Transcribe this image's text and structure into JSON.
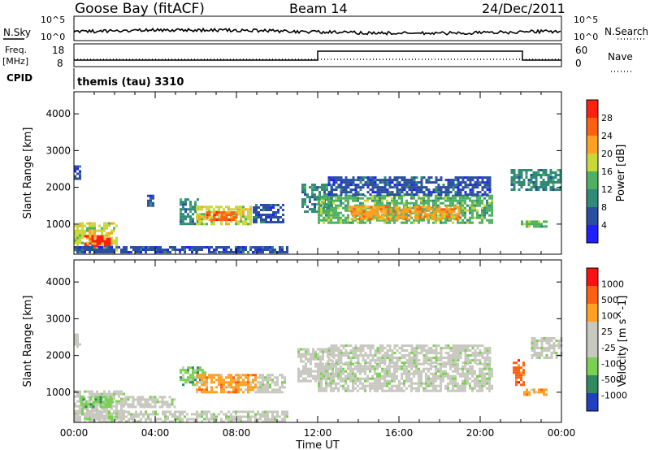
{
  "header": {
    "station": "Goose Bay (fitACF)",
    "beam": "Beam 14",
    "date": "24/Dec/2011"
  },
  "top_panels": {
    "nsky_label": "N.Sky",
    "nsky_ticks": [
      "10^5",
      "10^0"
    ],
    "nsearch_label": "N.Search",
    "nsearch_ticks": [
      "10^5",
      "10^0"
    ],
    "freq_label": "Freq.",
    "freq_unit": "[MHz]",
    "freq_ticks": [
      "18",
      "8"
    ],
    "nave_label": "Nave",
    "nave_ticks": [
      "60",
      "0"
    ],
    "cpid_label": "CPID",
    "cpid_text": "themis (tau) 3310"
  },
  "chart_data": [
    {
      "type": "heatmap",
      "name": "power",
      "ylabel": "Slant Range [km]",
      "y_ticks": [
        "4000",
        "3000",
        "2000",
        "1000"
      ],
      "ylim": [
        180,
        4600
      ],
      "xlim": [
        0,
        24
      ],
      "colorbar_label": "Power [dB]",
      "colorbar_ticks": [
        "28",
        "24",
        "20",
        "16",
        "12",
        "8",
        "4"
      ],
      "colors": [
        "#2020ff",
        "#2a4fa0",
        "#2f8a78",
        "#4fb060",
        "#c8d838",
        "#ffa020",
        "#ff6010",
        "#ff2010"
      ],
      "regions": [
        {
          "x0": 0.0,
          "x1": 2.2,
          "y0": 250,
          "y1": 1050,
          "level": 4
        },
        {
          "x0": 0.5,
          "x1": 1.8,
          "y0": 350,
          "y1": 700,
          "level": 7
        },
        {
          "x0": 0.0,
          "x1": 0.3,
          "y0": 2200,
          "y1": 2600,
          "level": 1
        },
        {
          "x0": 3.6,
          "x1": 4.0,
          "y0": 1450,
          "y1": 1800,
          "level": 1
        },
        {
          "x0": 5.2,
          "x1": 6.2,
          "y0": 1000,
          "y1": 1700,
          "level": 2
        },
        {
          "x0": 6.0,
          "x1": 8.8,
          "y0": 950,
          "y1": 1500,
          "level": 4
        },
        {
          "x0": 6.5,
          "x1": 8.0,
          "y0": 1100,
          "y1": 1350,
          "level": 6
        },
        {
          "x0": 8.8,
          "x1": 10.4,
          "y0": 1000,
          "y1": 1550,
          "level": 1
        },
        {
          "x0": 11.2,
          "x1": 12.8,
          "y0": 1300,
          "y1": 2100,
          "level": 2
        },
        {
          "x0": 12.0,
          "x1": 20.6,
          "y0": 1000,
          "y1": 1800,
          "level": 3
        },
        {
          "x0": 13.5,
          "x1": 19.0,
          "y0": 1100,
          "y1": 1500,
          "level": 5
        },
        {
          "x0": 12.5,
          "x1": 20.5,
          "y0": 1800,
          "y1": 2300,
          "level": 1
        },
        {
          "x0": 21.5,
          "x1": 24.0,
          "y0": 1900,
          "y1": 2500,
          "level": 2
        },
        {
          "x0": 22.0,
          "x1": 23.3,
          "y0": 900,
          "y1": 1100,
          "level": 3
        },
        {
          "x0": 0.0,
          "x1": 10.5,
          "y0": 180,
          "y1": 400,
          "level": 1
        }
      ]
    },
    {
      "type": "heatmap",
      "name": "velocity",
      "ylabel": "Slant Range [km]",
      "y_ticks": [
        "4000",
        "3000",
        "2000",
        "1000"
      ],
      "ylim": [
        180,
        4600
      ],
      "xlim": [
        0,
        24
      ],
      "colorbar_label": "Velocity [m s^-1]",
      "colorbar_ticks": [
        "1000",
        "500",
        "100",
        "25",
        "-25",
        "-100",
        "-500",
        "-1000"
      ],
      "colors": [
        "#2040c0",
        "#2f8a60",
        "#7ad050",
        "#c8c8c0",
        "#c8c8c0",
        "#ffa020",
        "#ff6010",
        "#ff1010"
      ],
      "regions": [
        {
          "x0": 0.0,
          "x1": 2.5,
          "y0": 250,
          "y1": 1050,
          "level": 3
        },
        {
          "x0": 0.3,
          "x1": 2.0,
          "y0": 600,
          "y1": 900,
          "level": 2
        },
        {
          "x0": 2.5,
          "x1": 5.0,
          "y0": 600,
          "y1": 900,
          "level": 3
        },
        {
          "x0": 0.0,
          "x1": 0.3,
          "y0": 2200,
          "y1": 2600,
          "level": 3
        },
        {
          "x0": 5.2,
          "x1": 6.5,
          "y0": 1200,
          "y1": 1700,
          "level": 2
        },
        {
          "x0": 6.0,
          "x1": 9.0,
          "y0": 1000,
          "y1": 1500,
          "level": 5
        },
        {
          "x0": 9.0,
          "x1": 10.4,
          "y0": 1000,
          "y1": 1500,
          "level": 3
        },
        {
          "x0": 11.0,
          "x1": 12.8,
          "y0": 1300,
          "y1": 2200,
          "level": 3
        },
        {
          "x0": 12.0,
          "x1": 20.6,
          "y0": 1000,
          "y1": 1800,
          "level": 3
        },
        {
          "x0": 12.5,
          "x1": 20.5,
          "y0": 1800,
          "y1": 2300,
          "level": 3
        },
        {
          "x0": 21.6,
          "x1": 22.2,
          "y0": 1200,
          "y1": 1900,
          "level": 6
        },
        {
          "x0": 22.0,
          "x1": 23.3,
          "y0": 900,
          "y1": 1100,
          "level": 5
        },
        {
          "x0": 22.5,
          "x1": 24.0,
          "y0": 1900,
          "y1": 2500,
          "level": 3
        },
        {
          "x0": 0.0,
          "x1": 10.5,
          "y0": 180,
          "y1": 500,
          "level": 3
        }
      ]
    }
  ],
  "x_axis": {
    "ticks": [
      "00:00",
      "04:00",
      "08:00",
      "12:00",
      "16:00",
      "20:00",
      "00:00"
    ],
    "label": "Time UT"
  }
}
